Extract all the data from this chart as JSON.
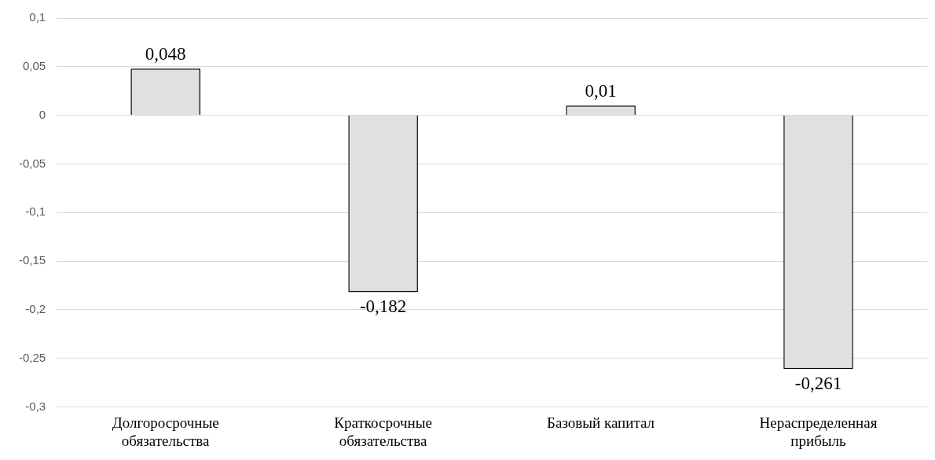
{
  "chart_data": {
    "type": "bar",
    "categories": [
      "Долгоросрочные обязательства",
      "Краткосрочные обязательства",
      "Базовый капитал",
      "Нераспределенная прибыль"
    ],
    "values": [
      0.048,
      -0.182,
      0.01,
      -0.261
    ],
    "value_labels": [
      "0,048",
      "-0,182",
      "0,01",
      "-0,261"
    ],
    "color": "#e0e0e0",
    "ylim": [
      -0.3,
      0.1
    ],
    "yticks": [
      {
        "value": 0.1,
        "label": "0,1"
      },
      {
        "value": 0.05,
        "label": "0,05"
      },
      {
        "value": 0,
        "label": "0"
      },
      {
        "value": -0.05,
        "label": "-0,05"
      },
      {
        "value": -0.1,
        "label": "-0,1"
      },
      {
        "value": -0.15,
        "label": "-0,15"
      },
      {
        "value": -0.2,
        "label": "-0,2"
      },
      {
        "value": -0.25,
        "label": "-0,25"
      },
      {
        "value": -0.3,
        "label": "-0,3"
      }
    ],
    "grid": "y"
  }
}
